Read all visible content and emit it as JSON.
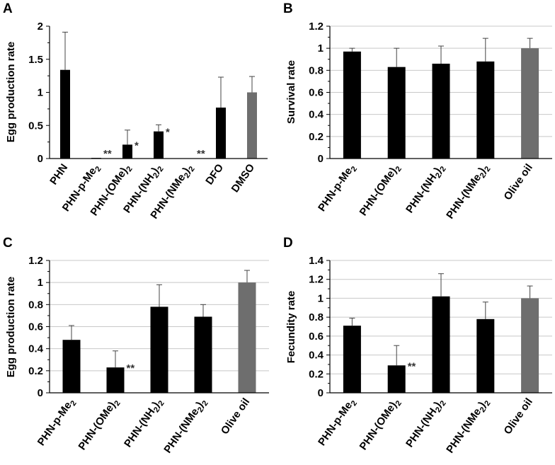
{
  "colors": {
    "bar_default": "#000000",
    "bar_control": "#6e6e6e",
    "grid": "#c8c8c8"
  },
  "chart_data": [
    {
      "panel": "A",
      "type": "bar",
      "ylabel": "Egg production rate",
      "ylim": [
        0,
        2
      ],
      "yticks": [
        "0",
        "0.5",
        "1",
        "1.5",
        "2"
      ],
      "ytick_values": [
        0,
        0.5,
        1,
        1.5,
        2
      ],
      "categories": [
        "PHN",
        "PHN-p-Me2",
        "PHN-(OMe)2",
        "PHN-(NH2)2",
        "PHN-(NMe2)2",
        "DFO",
        "DMSO"
      ],
      "values": [
        1.34,
        0.01,
        0.21,
        0.41,
        0.005,
        0.77,
        1.0
      ],
      "errors": [
        0.57,
        0.0,
        0.22,
        0.1,
        0.0,
        0.46,
        0.24
      ],
      "significance": [
        "",
        "**",
        "*",
        "*",
        "**",
        "",
        ""
      ],
      "control_index": 6,
      "grid": false
    },
    {
      "panel": "B",
      "type": "bar",
      "ylabel": "Survival rate",
      "ylim": [
        0,
        1.2
      ],
      "yticks": [
        "0",
        "0.2",
        "0.4",
        "0.6",
        "0.8",
        "1",
        "1.2"
      ],
      "ytick_values": [
        0,
        0.2,
        0.4,
        0.6,
        0.8,
        1.0,
        1.2
      ],
      "categories": [
        "PHN-p-Me2",
        "PHN-(OMe)2",
        "PHN-(NH2)2",
        "PHN-(NMe2)2",
        "Olive oil"
      ],
      "values": [
        0.97,
        0.83,
        0.86,
        0.88,
        1.0
      ],
      "errors": [
        0.03,
        0.17,
        0.16,
        0.21,
        0.09
      ],
      "significance": [
        "",
        "",
        "",
        "",
        ""
      ],
      "control_index": 4,
      "grid": true
    },
    {
      "panel": "C",
      "type": "bar",
      "ylabel": "Egg production rate",
      "ylim": [
        0,
        1.2
      ],
      "yticks": [
        "0",
        "0.2",
        "0.4",
        "0.6",
        "0.8",
        "1",
        "1.2"
      ],
      "ytick_values": [
        0,
        0.2,
        0.4,
        0.6,
        0.8,
        1.0,
        1.2
      ],
      "categories": [
        "PHN-p-Me2",
        "PHN-(OMe)2",
        "PHN-(NH2)2",
        "PHN-(NMe2)2",
        "Olive oil"
      ],
      "values": [
        0.48,
        0.23,
        0.78,
        0.69,
        1.0
      ],
      "errors": [
        0.13,
        0.15,
        0.2,
        0.11,
        0.11
      ],
      "significance": [
        "",
        "**",
        "",
        "",
        ""
      ],
      "control_index": 4,
      "grid": true
    },
    {
      "panel": "D",
      "type": "bar",
      "ylabel": "Fecundity rate",
      "ylim": [
        0,
        1.4
      ],
      "yticks": [
        "0",
        "0.2",
        "0.4",
        "0.6",
        "0.8",
        "1",
        "1.2",
        "1.4"
      ],
      "ytick_values": [
        0,
        0.2,
        0.4,
        0.6,
        0.8,
        1.0,
        1.2,
        1.4
      ],
      "categories": [
        "PHN-p-Me2",
        "PHN-(OMe)2",
        "PHN-(NH2)2",
        "PHN-(NMe2)2",
        "Olive oil"
      ],
      "values": [
        0.71,
        0.29,
        1.02,
        0.78,
        1.0
      ],
      "errors": [
        0.08,
        0.21,
        0.24,
        0.18,
        0.13
      ],
      "significance": [
        "",
        "**",
        "",
        "",
        ""
      ],
      "control_index": 4,
      "grid": true
    }
  ]
}
